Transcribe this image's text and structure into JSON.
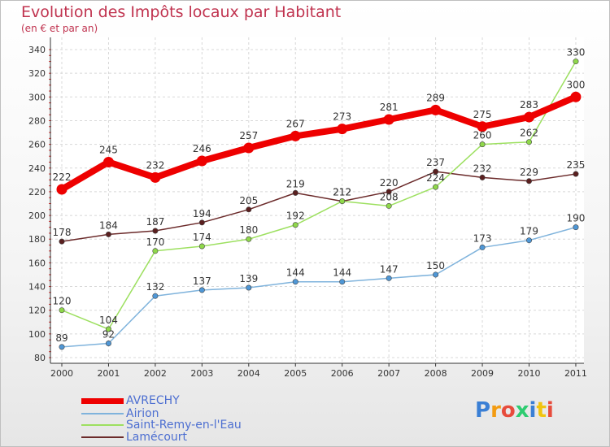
{
  "chart_data": {
    "type": "line",
    "title": "Evolution des Impôts locaux par Habitant",
    "subtitle": "(en € et par an)",
    "xlabel": "",
    "ylabel": "",
    "ylim": [
      80,
      340
    ],
    "yticks": [
      80,
      100,
      120,
      140,
      160,
      180,
      200,
      220,
      240,
      260,
      280,
      300,
      320,
      340
    ],
    "x": [
      "2000",
      "2001",
      "2002",
      "2003",
      "2004",
      "2005",
      "2006",
      "2007",
      "2008",
      "2009",
      "2010",
      "2011"
    ],
    "legend_position": "bottom-left",
    "grid": true,
    "series": [
      {
        "name": "Lamécourt",
        "color": "#6b2a2a",
        "marker": "#5a1f1f",
        "values": [
          178,
          184,
          187,
          194,
          205,
          219,
          212,
          220,
          237,
          232,
          229,
          235
        ]
      },
      {
        "name": "Saint-Remy-en-l'Eau",
        "color": "#9de060",
        "marker": "#8fd84a",
        "values": [
          120,
          104,
          170,
          174,
          180,
          192,
          212,
          208,
          224,
          260,
          262,
          330
        ]
      },
      {
        "name": "Airion",
        "color": "#7fb3dc",
        "marker": "#4f97d6",
        "values": [
          89,
          92,
          132,
          137,
          139,
          144,
          144,
          147,
          150,
          173,
          179,
          190
        ]
      },
      {
        "name": "AVRECHY",
        "color": "#ee0000",
        "marker": "#ee0000",
        "values": [
          222,
          245,
          232,
          246,
          257,
          267,
          273,
          281,
          289,
          275,
          283,
          300
        ]
      }
    ]
  },
  "legend": {
    "items": [
      {
        "label": "AVRECHY",
        "color": "#ee0000"
      },
      {
        "label": "Airion",
        "color": "#7fb3dc"
      },
      {
        "label": "Saint-Remy-en-l'Eau",
        "color": "#9de060"
      },
      {
        "label": "Lamécourt",
        "color": "#6b2a2a"
      }
    ]
  },
  "logo": {
    "letters": [
      "P",
      "r",
      "o",
      "x",
      "i",
      "t",
      "i"
    ],
    "colors": [
      "#3a7fd5",
      "#f39c12",
      "#e74c3c",
      "#2ecc71",
      "#3a7fd5",
      "#f1c40f",
      "#e74c3c"
    ]
  }
}
